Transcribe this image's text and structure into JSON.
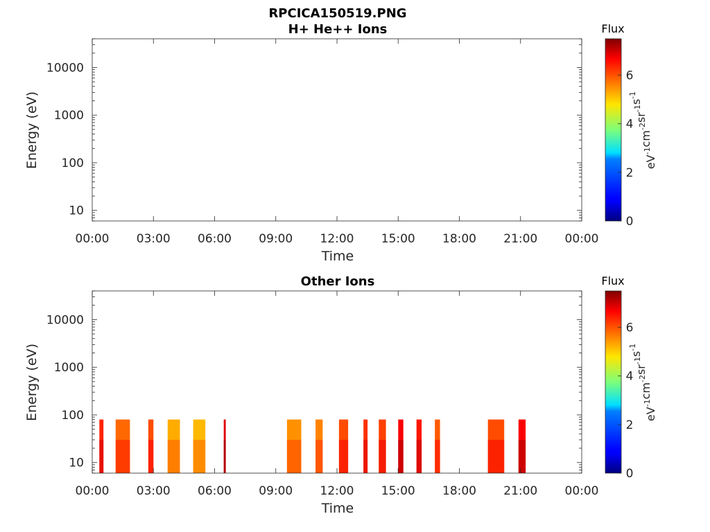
{
  "figure": {
    "title": "RPCICA150519.PNG"
  },
  "chart_data": [
    {
      "type": "heatmap",
      "title": "H+ He++ Ions",
      "xlabel": "Time",
      "ylabel": "Energy (eV)",
      "x_ticks": [
        "00:00",
        "03:00",
        "06:00",
        "09:00",
        "12:00",
        "15:00",
        "18:00",
        "21:00",
        "00:00"
      ],
      "x_range_hours": [
        0,
        24
      ],
      "y_scale": "log",
      "y_range": [
        6,
        40000
      ],
      "y_ticks": [
        10,
        100,
        1000,
        10000
      ],
      "y_tick_labels": [
        "10",
        "100",
        "1000",
        "10000"
      ],
      "colorbar": {
        "title": "Flux",
        "unit": "eV-1cm-2sr-1s-1",
        "range": [
          0,
          7.5
        ],
        "ticks": [
          0,
          2,
          4,
          6
        ],
        "tick_labels": [
          "0",
          "2",
          "4",
          "6"
        ],
        "colormap": "jet"
      },
      "segments": []
    },
    {
      "type": "heatmap",
      "title": "Other Ions",
      "xlabel": "Time",
      "ylabel": "Energy (eV)",
      "x_ticks": [
        "00:00",
        "03:00",
        "06:00",
        "09:00",
        "12:00",
        "15:00",
        "18:00",
        "21:00",
        "00:00"
      ],
      "x_range_hours": [
        0,
        24
      ],
      "y_scale": "log",
      "y_range": [
        6,
        40000
      ],
      "y_ticks": [
        10,
        100,
        1000,
        10000
      ],
      "y_tick_labels": [
        "10",
        "100",
        "1000",
        "10000"
      ],
      "colorbar": {
        "title": "Flux",
        "unit": "eV-1cm-2sr-1s-1",
        "range": [
          0,
          7.5
        ],
        "ticks": [
          0,
          2,
          4,
          6
        ],
        "tick_labels": [
          "0",
          "2",
          "4",
          "6"
        ],
        "colormap": "jet"
      },
      "energy_range": [
        6,
        80
      ],
      "segments": [
        {
          "start": 0.35,
          "end": 0.55,
          "flux": 6.3
        },
        {
          "start": 1.15,
          "end": 1.85,
          "flux": 5.8
        },
        {
          "start": 2.75,
          "end": 3.0,
          "flux": 6.0
        },
        {
          "start": 3.7,
          "end": 4.3,
          "flux": 5.3
        },
        {
          "start": 4.95,
          "end": 5.55,
          "flux": 5.2
        },
        {
          "start": 6.45,
          "end": 6.55,
          "flux": 6.8
        },
        {
          "start": 9.55,
          "end": 10.25,
          "flux": 5.5
        },
        {
          "start": 10.95,
          "end": 11.3,
          "flux": 5.6
        },
        {
          "start": 12.1,
          "end": 12.55,
          "flux": 6.0
        },
        {
          "start": 13.3,
          "end": 13.5,
          "flux": 6.2
        },
        {
          "start": 14.05,
          "end": 14.4,
          "flux": 6.1
        },
        {
          "start": 15.0,
          "end": 15.25,
          "flux": 6.6
        },
        {
          "start": 15.9,
          "end": 16.15,
          "flux": 6.4
        },
        {
          "start": 16.8,
          "end": 17.05,
          "flux": 5.9
        },
        {
          "start": 19.4,
          "end": 20.2,
          "flux": 6.0
        },
        {
          "start": 20.9,
          "end": 21.25,
          "flux": 6.6
        }
      ]
    }
  ]
}
